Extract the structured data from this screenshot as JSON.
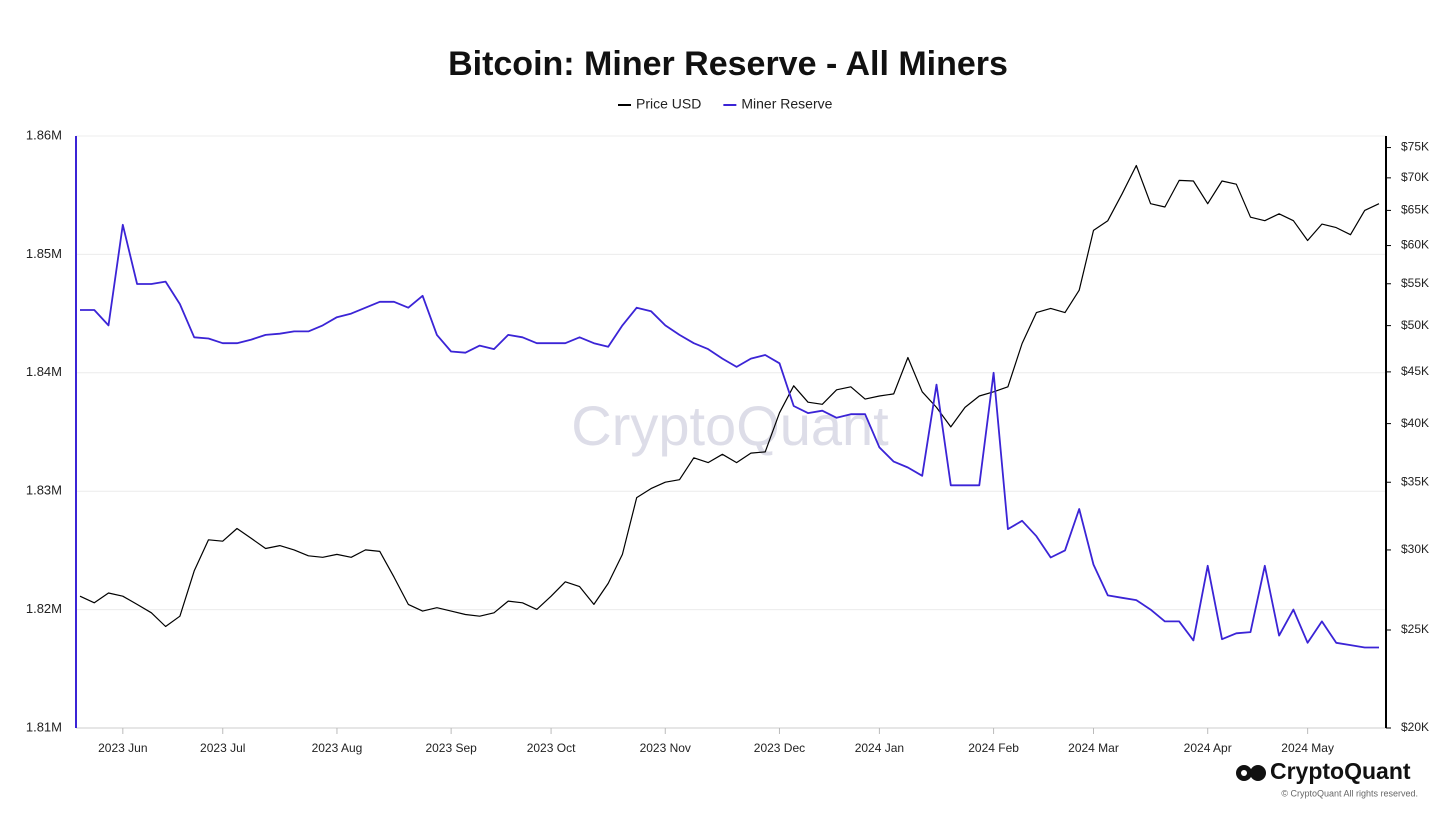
{
  "chart_data": {
    "type": "line",
    "title": "Bitcoin: Miner Reserve - All Miners",
    "watermark": "CryptoQuant",
    "brand": "CryptoQuant",
    "copyright": "© CryptoQuant All rights reserved.",
    "categories": [
      null,
      null,
      null,
      "2023 Jun",
      null,
      null,
      null,
      null,
      null,
      null,
      "2023 Jul",
      null,
      null,
      null,
      null,
      null,
      null,
      null,
      "2023 Aug",
      null,
      null,
      null,
      null,
      null,
      null,
      null,
      "2023 Sep",
      null,
      null,
      null,
      null,
      null,
      null,
      "2023 Oct",
      null,
      null,
      null,
      null,
      null,
      null,
      null,
      "2023 Nov",
      null,
      null,
      null,
      null,
      null,
      null,
      null,
      "2023 Dec",
      null,
      null,
      null,
      null,
      null,
      null,
      "2024 Jan",
      null,
      null,
      null,
      null,
      null,
      null,
      null,
      "2024 Feb",
      null,
      null,
      null,
      null,
      null,
      null,
      "2024 Mar",
      null,
      null,
      null,
      null,
      null,
      null,
      null,
      "2024 Apr",
      null,
      null,
      null,
      null,
      null,
      null,
      "2024 May",
      null,
      null,
      null,
      null,
      null
    ],
    "series": [
      {
        "name": "Price USD",
        "color": "#000000",
        "axis": "y2",
        "values": [
          27000,
          26600,
          27200,
          27000,
          26500,
          26000,
          25200,
          25800,
          28600,
          30700,
          30600,
          31500,
          30800,
          30100,
          30300,
          30000,
          29600,
          29500,
          29700,
          29500,
          30000,
          29900,
          28200,
          26500,
          26100,
          26300,
          26100,
          25900,
          25800,
          26000,
          26700,
          26600,
          26200,
          27000,
          27900,
          27600,
          26500,
          27800,
          29700,
          33800,
          34500,
          35000,
          35200,
          37000,
          36600,
          37300,
          36600,
          37400,
          37500,
          41000,
          43600,
          42000,
          41800,
          43200,
          43500,
          42300,
          42600,
          42800,
          46500,
          43000,
          41500,
          39700,
          41500,
          42600,
          43000,
          43500,
          48000,
          51500,
          52000,
          51500,
          54200,
          62100,
          63500,
          67500,
          72000,
          66000,
          65500,
          69600,
          69500,
          66000,
          69500,
          69000,
          64000,
          63500,
          64500,
          63500,
          60700,
          63000,
          62500,
          61500,
          65000,
          66000
        ]
      },
      {
        "name": "Miner Reserve",
        "color": "#3b24d6",
        "values": [
          1845300,
          1845300,
          1844000,
          1852500,
          1847500,
          1847500,
          1847700,
          1845800,
          1843000,
          1842900,
          1842500,
          1842500,
          1842800,
          1843200,
          1843300,
          1843500,
          1843500,
          1844000,
          1844700,
          1845000,
          1845500,
          1846000,
          1846000,
          1845500,
          1846500,
          1843200,
          1841800,
          1841700,
          1842300,
          1842000,
          1843200,
          1843000,
          1842500,
          1842500,
          1842500,
          1843000,
          1842500,
          1842200,
          1844000,
          1845500,
          1845200,
          1844000,
          1843200,
          1842500,
          1842000,
          1841200,
          1840500,
          1841200,
          1841500,
          1840800,
          1837200,
          1836600,
          1836800,
          1836200,
          1836500,
          1836500,
          1833700,
          1832500,
          1832000,
          1831300,
          1839000,
          1830500,
          1830500,
          1830500,
          1840000,
          1826800,
          1827500,
          1826200,
          1824400,
          1825000,
          1828500,
          1823800,
          1821200,
          1821000,
          1820800,
          1820000,
          1819000,
          1819000,
          1817400,
          1823700,
          1817500,
          1818000,
          1818100,
          1823700,
          1817800,
          1820000,
          1817200,
          1819000,
          1817200,
          1817000,
          1816800,
          1816800
        ]
      }
    ],
    "ylim": [
      1810000,
      1860000
    ],
    "yticks": [
      {
        "value": 1810000,
        "label": "1.81M"
      },
      {
        "value": 1820000,
        "label": "1.82M"
      },
      {
        "value": 1830000,
        "label": "1.83M"
      },
      {
        "value": 1840000,
        "label": "1.84M"
      },
      {
        "value": 1850000,
        "label": "1.85M"
      },
      {
        "value": 1860000,
        "label": "1.86M"
      }
    ],
    "y2lim": [
      20000,
      77000
    ],
    "y2log": true,
    "y2ticks": [
      {
        "value": 20000,
        "label": "$20K"
      },
      {
        "value": 25000,
        "label": "$25K"
      },
      {
        "value": 30000,
        "label": "$30K"
      },
      {
        "value": 35000,
        "label": "$35K"
      },
      {
        "value": 40000,
        "label": "$40K"
      },
      {
        "value": 45000,
        "label": "$45K"
      },
      {
        "value": 50000,
        "label": "$50K"
      },
      {
        "value": 55000,
        "label": "$55K"
      },
      {
        "value": 60000,
        "label": "$60K"
      },
      {
        "value": 65000,
        "label": "$65K"
      },
      {
        "value": 70000,
        "label": "$70K"
      },
      {
        "value": 75000,
        "label": "$75K"
      }
    ],
    "grid": true
  }
}
